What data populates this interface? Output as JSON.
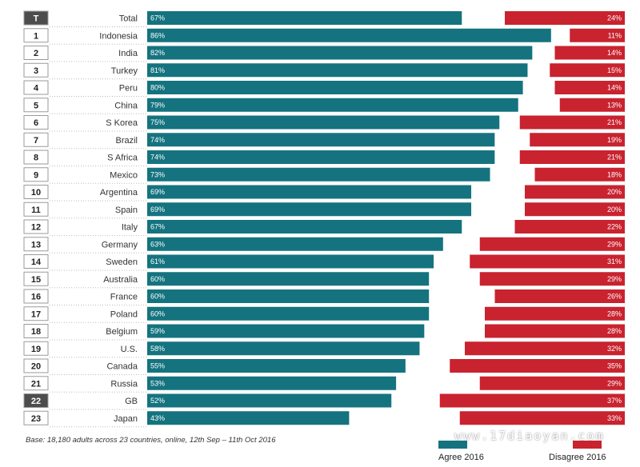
{
  "chart_data": {
    "type": "bar",
    "categories": [
      "Total",
      "Indonesia",
      "India",
      "Turkey",
      "Peru",
      "China",
      "S Korea",
      "Brazil",
      "S Africa",
      "Mexico",
      "Argentina",
      "Spain",
      "Italy",
      "Germany",
      "Sweden",
      "Australia",
      "France",
      "Poland",
      "Belgium",
      "U.S.",
      "Canada",
      "Russia",
      "GB",
      "Japan"
    ],
    "ranks": [
      "T",
      "1",
      "2",
      "3",
      "4",
      "5",
      "6",
      "7",
      "8",
      "9",
      "10",
      "11",
      "12",
      "13",
      "14",
      "15",
      "16",
      "17",
      "18",
      "19",
      "20",
      "21",
      "22",
      "23"
    ],
    "highlighted_ranks": [
      "T",
      "22"
    ],
    "series": [
      {
        "name": "Agree 2016",
        "color": "#14737f",
        "values": [
          67,
          86,
          82,
          81,
          80,
          79,
          75,
          74,
          74,
          73,
          69,
          69,
          67,
          63,
          61,
          60,
          60,
          60,
          59,
          58,
          55,
          53,
          52,
          43
        ],
        "labels": [
          "67%",
          "86%",
          "82%",
          "81%",
          "80%",
          "79%",
          "75%",
          "74%",
          "74%",
          "73%",
          "69%",
          "69%",
          "67%",
          "63%",
          "61%",
          "60%",
          "60%",
          "60%",
          "59%",
          "58%",
          "55%",
          "53%",
          "52%",
          "43%"
        ]
      },
      {
        "name": "Disagree 2016",
        "color": "#c8232f",
        "values": [
          24,
          11,
          14,
          15,
          14,
          13,
          21,
          19,
          21,
          18,
          20,
          20,
          22,
          29,
          31,
          29,
          26,
          28,
          28,
          32,
          35,
          29,
          37,
          33
        ],
        "labels": [
          "24%",
          "11%",
          "14%",
          "15%",
          "14%",
          "13%",
          "21%",
          "19%",
          "21%",
          "18%",
          "20%",
          "20%",
          "22%",
          "29%",
          "31%",
          "29%",
          "26%",
          "28%",
          "28%",
          "32%",
          "35%",
          "29%",
          "37%",
          "33%"
        ]
      }
    ],
    "xlim": [
      0,
      100
    ],
    "grid": false,
    "legend": "bottom-right"
  },
  "footnote": "Base: 18,180 adults across 23 countries, online, 12th Sep – 11th Oct 2016",
  "watermark": "www.17diaoyan.com",
  "colors": {
    "rank_box_fill": "#ffffff",
    "rank_box_highlight_fill": "#4d4d4d",
    "rank_box_stroke": "#9a9a9a"
  }
}
